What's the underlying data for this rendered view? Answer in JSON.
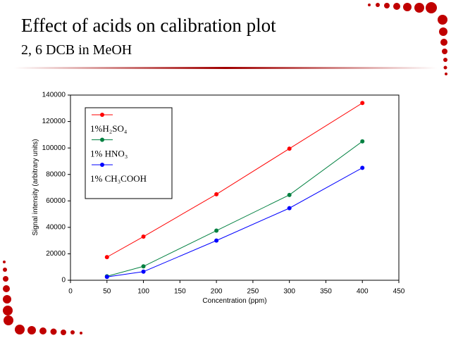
{
  "chart_data": {
    "type": "line",
    "title": "Effect of acids on calibration plot",
    "subtitle": "2, 6 DCB in MeOH",
    "x_label": "Concentration (ppm)",
    "y_label": "Signal intensity (arbitrary units)",
    "x": [
      50,
      100,
      200,
      300,
      400
    ],
    "series": [
      {
        "name": "1%H₂SO₄",
        "color": "#ff0000",
        "values": [
          17500,
          33000,
          65000,
          99500,
          134000
        ]
      },
      {
        "name": "1% HNO₃",
        "color": "#008040",
        "values": [
          3000,
          10500,
          37500,
          64500,
          105000
        ]
      },
      {
        "name": "1% CH₃COOH",
        "color": "#0000ff",
        "values": [
          2500,
          6500,
          30000,
          54500,
          85000
        ]
      }
    ],
    "xlim": [
      0,
      450
    ],
    "xticks": [
      0,
      50,
      100,
      150,
      200,
      250,
      300,
      350,
      400,
      450
    ],
    "ylim": [
      0,
      140000
    ],
    "yticks": [
      0,
      20000,
      40000,
      60000,
      80000,
      100000,
      120000,
      140000
    ]
  }
}
